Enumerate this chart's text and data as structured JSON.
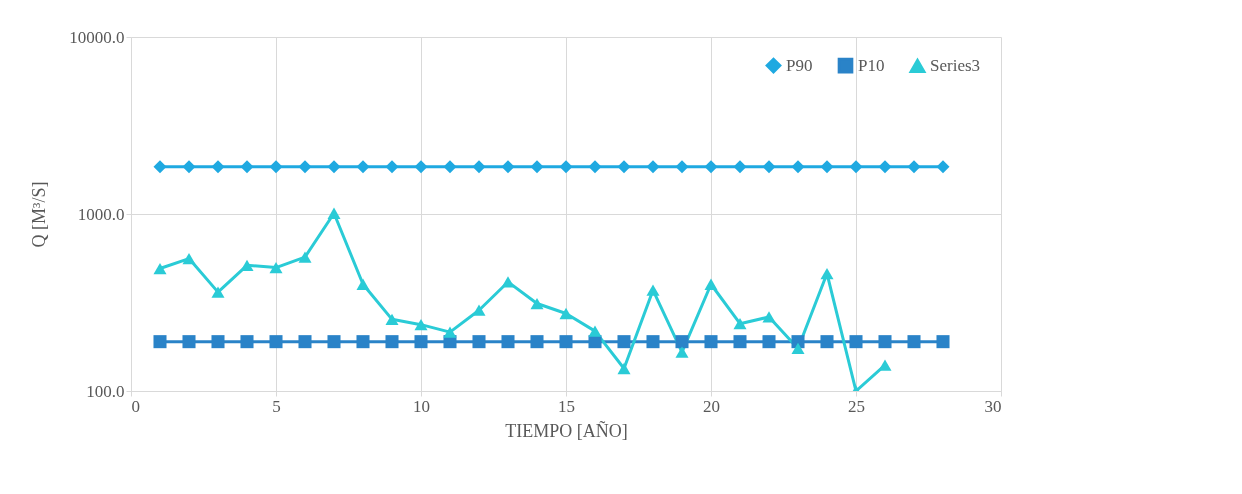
{
  "chart_data": {
    "type": "line",
    "xlabel": "TIEMPO [AÑO]",
    "ylabel": "Q [M³/S]",
    "x": [
      1,
      2,
      3,
      4,
      5,
      6,
      7,
      8,
      9,
      10,
      11,
      12,
      13,
      14,
      15,
      16,
      17,
      18,
      19,
      20,
      21,
      22,
      23,
      24,
      25,
      26,
      27,
      28
    ],
    "series": [
      {
        "name": "P90",
        "color": "#1fa9e1",
        "marker": "diamond",
        "values": [
          1850,
          1850,
          1850,
          1850,
          1850,
          1850,
          1850,
          1850,
          1850,
          1850,
          1850,
          1850,
          1850,
          1850,
          1850,
          1850,
          1850,
          1850,
          1850,
          1850,
          1850,
          1850,
          1850,
          1850,
          1850,
          1850,
          1850,
          1850
        ]
      },
      {
        "name": "P10",
        "color": "#2a83c8",
        "marker": "square",
        "values": [
          190,
          190,
          190,
          190,
          190,
          190,
          190,
          190,
          190,
          190,
          190,
          190,
          190,
          190,
          190,
          190,
          190,
          190,
          190,
          190,
          190,
          190,
          190,
          190,
          190,
          190,
          190,
          190
        ]
      },
      {
        "name": "Series3",
        "color": "#2acbd6",
        "marker": "triangle",
        "values": [
          492,
          560,
          362,
          513,
          498,
          571,
          1010,
          401,
          254,
          237,
          215,
          286,
          413,
          312,
          274,
          218,
          134,
          371,
          166,
          401,
          240,
          262,
          174,
          461,
          100,
          140,
          null,
          null
        ]
      }
    ],
    "xlim": [
      0,
      30
    ],
    "xticks": [
      0,
      5,
      10,
      15,
      20,
      25,
      30
    ],
    "ylim": [
      100,
      10000
    ],
    "yticks": [
      {
        "value": 100,
        "label": "100.0"
      },
      {
        "value": 1000,
        "label": "1000.0"
      },
      {
        "value": 10000,
        "label": "10000.0"
      }
    ],
    "log": "y",
    "grid": true,
    "legend": "top right",
    "line_style": "solid"
  }
}
